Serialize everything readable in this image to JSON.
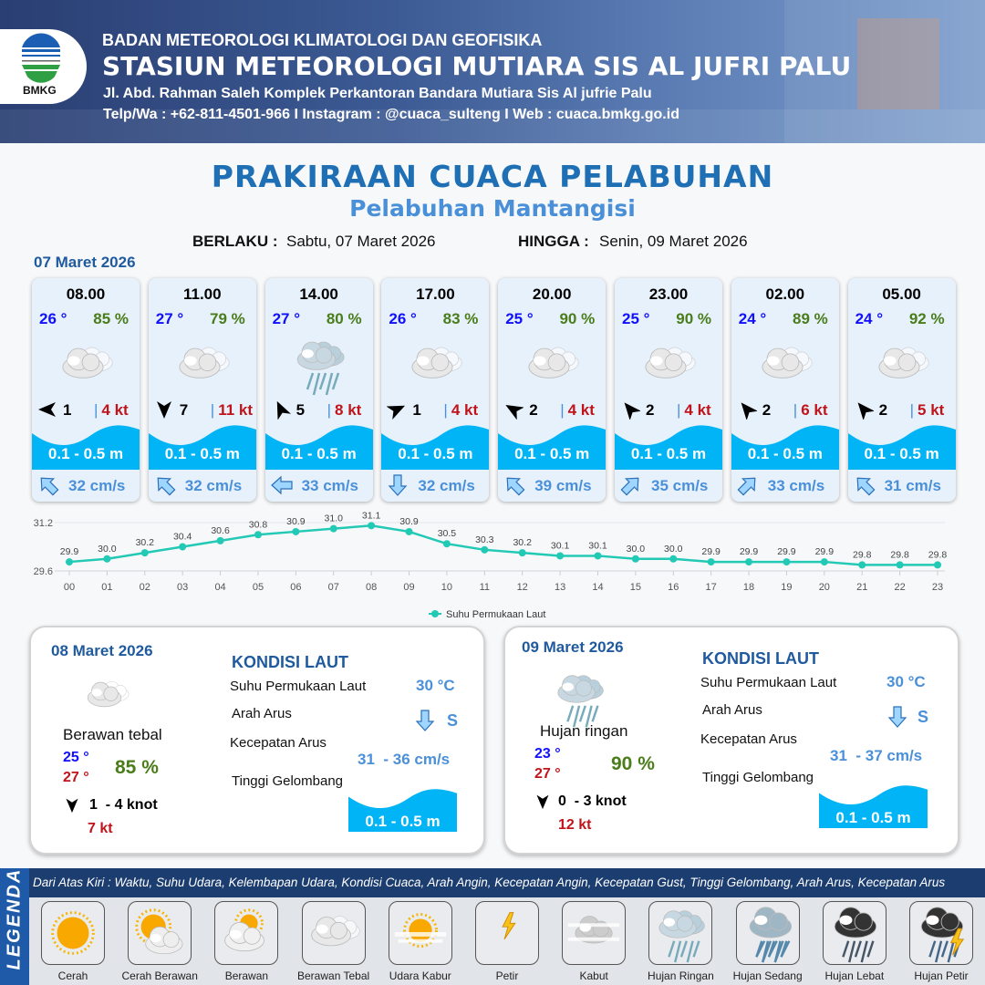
{
  "header": {
    "logo_text": "BMKG",
    "org": "BADAN METEOROLOGI KLIMATOLOGI DAN GEOFISIKA",
    "station": "STASIUN METEOROLOGI MUTIARA SIS AL JUFRI PALU",
    "address": "Jl. Abd. Rahman Saleh Komplek Perkantoran Bandara Mutiara Sis Al jufrie Palu",
    "contact": "Telp/Wa : +62-811-4501-966  I  Instagram : @cuaca_sulteng  I  Web : cuaca.bmkg.go.id"
  },
  "title": "PRAKIRAAN CUACA PELABUHAN",
  "subtitle": "Pelabuhan Mantangisi",
  "validity": {
    "from_label": "BERLAKU :",
    "from": "Sabtu, 07 Maret 2026",
    "to_label": "HINGGA :",
    "to": "Senin, 09 Maret 2026"
  },
  "day1_label": "07 Maret 2026",
  "colors": {
    "temp": "#1010ff",
    "humidity": "#4a7d1a",
    "gust": "#c0141a",
    "wave": "#00b4f5",
    "current": "#4a90d9",
    "sst_line": "#22c9b5"
  },
  "cards": [
    {
      "time": "08.00",
      "temp": "26 °",
      "hum": "85 %",
      "icon": "berawan-tebal",
      "wind_dir_deg": -90,
      "wind": "1",
      "gust": "4 kt",
      "wave": "0.1 - 0.5 m",
      "cur_dir_deg": -45,
      "cur": "32 cm/s"
    },
    {
      "time": "11.00",
      "temp": "27 °",
      "hum": "79 %",
      "icon": "berawan-tebal",
      "wind_dir_deg": 180,
      "wind": "7",
      "gust": "11 kt",
      "wave": "0.1 - 0.5 m",
      "cur_dir_deg": -45,
      "cur": "32 cm/s"
    },
    {
      "time": "14.00",
      "temp": "27 °",
      "hum": "80 %",
      "icon": "hujan-ringan",
      "wind_dir_deg": -25,
      "wind": "5",
      "gust": "8 kt",
      "wave": "0.1 - 0.5 m",
      "cur_dir_deg": -90,
      "cur": "33 cm/s"
    },
    {
      "time": "17.00",
      "temp": "26 °",
      "hum": "83 %",
      "icon": "berawan-tebal",
      "wind_dir_deg": 65,
      "wind": "1",
      "gust": "4 kt",
      "wave": "0.1 - 0.5 m",
      "cur_dir_deg": 180,
      "cur": "32 cm/s"
    },
    {
      "time": "20.00",
      "temp": "25 °",
      "hum": "90 %",
      "icon": "berawan-tebal",
      "wind_dir_deg": -60,
      "wind": "2",
      "gust": "4 kt",
      "wave": "0.1 - 0.5 m",
      "cur_dir_deg": -45,
      "cur": "39 cm/s"
    },
    {
      "time": "23.00",
      "temp": "25 °",
      "hum": "90 %",
      "icon": "berawan-tebal",
      "wind_dir_deg": -40,
      "wind": "2",
      "gust": "4 kt",
      "wave": "0.1 - 0.5 m",
      "cur_dir_deg": 45,
      "cur": "35 cm/s"
    },
    {
      "time": "02.00",
      "temp": "24 °",
      "hum": "89 %",
      "icon": "berawan-tebal",
      "wind_dir_deg": -40,
      "wind": "2",
      "gust": "6 kt",
      "wave": "0.1 - 0.5 m",
      "cur_dir_deg": 45,
      "cur": "33 cm/s"
    },
    {
      "time": "05.00",
      "temp": "24 °",
      "hum": "92 %",
      "icon": "berawan-tebal",
      "wind_dir_deg": -40,
      "wind": "2",
      "gust": "5 kt",
      "wave": "0.1 - 0.5 m",
      "cur_dir_deg": -45,
      "cur": "31 cm/s"
    }
  ],
  "chart_data": {
    "type": "line",
    "x": [
      "00",
      "01",
      "02",
      "03",
      "04",
      "05",
      "06",
      "07",
      "08",
      "09",
      "10",
      "11",
      "12",
      "13",
      "14",
      "15",
      "16",
      "17",
      "18",
      "19",
      "20",
      "21",
      "22",
      "23"
    ],
    "series": [
      {
        "name": "Suhu Permukaan Laut",
        "values": [
          29.9,
          30.0,
          30.2,
          30.4,
          30.6,
          30.8,
          30.9,
          31.0,
          31.1,
          30.9,
          30.5,
          30.3,
          30.2,
          30.1,
          30.1,
          30.0,
          30.0,
          29.9,
          29.9,
          29.9,
          29.9,
          29.8,
          29.8,
          29.8
        ]
      }
    ],
    "yticks": [
      "31.2",
      "29.6"
    ],
    "ylim": [
      29.6,
      31.2
    ],
    "grid": true,
    "legend": "bottom"
  },
  "days": [
    {
      "date": "08 Maret 2026",
      "icon": "berawan-tebal",
      "cond": "Berawan tebal",
      "tmin": "25 °",
      "tmax": "27 °",
      "hum": "85 %",
      "wind_dir_deg": 180,
      "wind": "1  - 4 knot",
      "gust": "7 kt",
      "kondisi_label": "KONDISI LAUT",
      "sst_label": "Suhu Permukaan Laut",
      "sst": "30 °C",
      "arah_label": "Arah Arus",
      "arah": "S",
      "cur_dir_deg": 180,
      "kec_label": "Kecepatan Arus",
      "kec": "31  - 36 cm/s",
      "tinggi_label": "Tinggi Gelombang",
      "wave": "0.1 - 0.5 m"
    },
    {
      "date": "09 Maret 2026",
      "icon": "hujan-ringan",
      "cond": "Hujan ringan",
      "tmin": "23 °",
      "tmax": "27 °",
      "hum": "90 %",
      "wind_dir_deg": 180,
      "wind": "0  - 3 knot",
      "gust": "12 kt",
      "kondisi_label": "KONDISI LAUT",
      "sst_label": "Suhu Permukaan Laut",
      "sst": "30 °C",
      "arah_label": "Arah Arus",
      "arah": "S",
      "cur_dir_deg": 180,
      "kec_label": "Kecepatan Arus",
      "kec": "31  - 37 cm/s",
      "tinggi_label": "Tinggi Gelombang",
      "wave": "0.1 - 0.5 m"
    }
  ],
  "legend": {
    "side_label": "LEGENDA",
    "description": "Dari Atas Kiri : Waktu, Suhu Udara, Kelembapan Udara, Kondisi Cuaca, Arah Angin, Kecepatan Angin, Kecepatan Gust, Tinggi Gelombang, Arah Arus, Kecepatan Arus",
    "items": [
      {
        "label": "Cerah",
        "icon": "cerah"
      },
      {
        "label": "Cerah Berawan",
        "icon": "cerah-berawan"
      },
      {
        "label": "Berawan",
        "icon": "berawan"
      },
      {
        "label": "Berawan Tebal",
        "icon": "berawan-tebal"
      },
      {
        "label": "Udara Kabur",
        "icon": "udara-kabur"
      },
      {
        "label": "Petir",
        "icon": "petir"
      },
      {
        "label": "Kabut",
        "icon": "kabut"
      },
      {
        "label": "Hujan Ringan",
        "icon": "hujan-ringan"
      },
      {
        "label": "Hujan Sedang",
        "icon": "hujan-sedang"
      },
      {
        "label": "Hujan Lebat",
        "icon": "hujan-lebat"
      },
      {
        "label": "Hujan Petir",
        "icon": "hujan-petir"
      }
    ]
  }
}
